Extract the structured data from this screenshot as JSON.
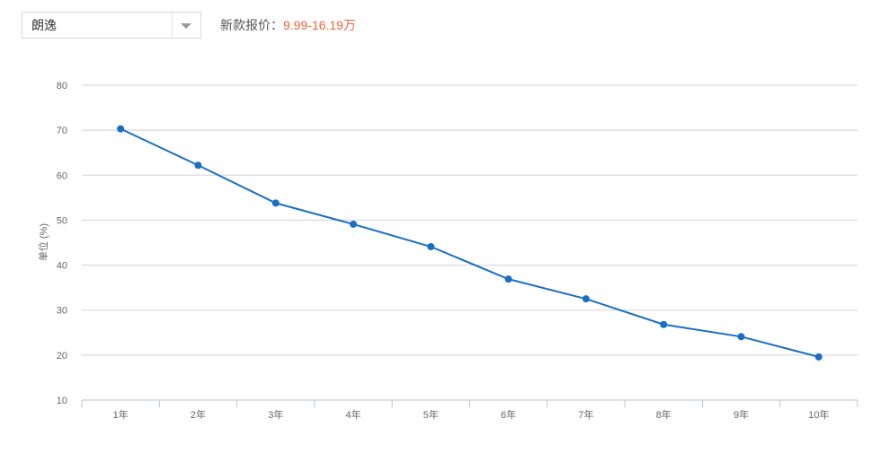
{
  "selector": {
    "value": "朗逸"
  },
  "price": {
    "label": "新款报价：",
    "value": "9.99-16.19万"
  },
  "colors": {
    "line": "#1a6fc4",
    "price": "#f0643c",
    "grid": "#cfd3d8"
  },
  "chart_data": {
    "type": "line",
    "title": "",
    "xlabel": "",
    "ylabel": "单位 (%)",
    "categories": [
      "1年",
      "2年",
      "3年",
      "4年",
      "5年",
      "6年",
      "7年",
      "8年",
      "9年",
      "10年"
    ],
    "series": [
      {
        "values": [
          70.3,
          62.2,
          53.8,
          49.1,
          44.1,
          36.9,
          32.5,
          26.8,
          24.1,
          19.6
        ]
      }
    ],
    "yticks": [
      10,
      20,
      30,
      40,
      50,
      60,
      70,
      80
    ],
    "ylim": [
      10,
      80
    ],
    "grid": true,
    "legend": "none"
  }
}
